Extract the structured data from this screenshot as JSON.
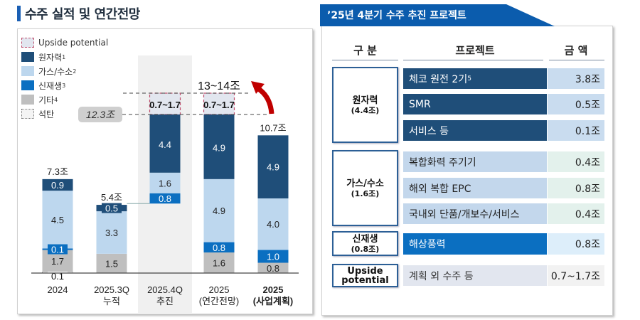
{
  "left_panel": {
    "title": "수주 실적 및 연간전망",
    "legend": [
      {
        "label": "Upside potential",
        "sup": "",
        "key": "upside"
      },
      {
        "label": "원자력",
        "sup": "1",
        "key": "nuclear"
      },
      {
        "label": "가스/수소",
        "sup": "2",
        "key": "gas"
      },
      {
        "label": "신재생",
        "sup": "3",
        "key": "renewable"
      },
      {
        "label": "기타",
        "sup": "4",
        "key": "other"
      },
      {
        "label": "석탄",
        "sup": "",
        "key": "coal"
      }
    ]
  },
  "colors": {
    "nuclear": "#1f4e79",
    "gas": "#bdd7ee",
    "renewable": "#0b6fc1",
    "other": "#bfbfbf",
    "upside": "#e2e6ef",
    "upside_border": "#c0506e",
    "highlight_bg": "#f0f0f0",
    "arrow": "#c00000",
    "title_accent": "#1a5fb4",
    "tab_bg": "#0b5cad"
  },
  "chart_data": {
    "type": "bar",
    "stacked": true,
    "title": "수주 실적 및 연간전망",
    "unit": "조",
    "categories": [
      "2024",
      "2025.3Q 누적",
      "2025.4Q 추진",
      "2025 (연간전망)",
      "2025 (사업계획)"
    ],
    "category_lines": [
      [
        "2024"
      ],
      [
        "2025.3Q",
        "누적"
      ],
      [
        "2025.4Q",
        "추진"
      ],
      [
        "2025",
        "(연간전망)"
      ],
      [
        "2025",
        "(사업계획)"
      ]
    ],
    "series": [
      {
        "name": "석탄",
        "key": "coal",
        "values": [
          0.1,
          0,
          0,
          0,
          0
        ]
      },
      {
        "name": "기타",
        "key": "other",
        "values": [
          1.7,
          1.5,
          0,
          1.6,
          0.8
        ]
      },
      {
        "name": "신재생",
        "key": "renewable",
        "values": [
          0.1,
          0,
          0.8,
          0.8,
          1.0
        ]
      },
      {
        "name": "가스/수소",
        "key": "gas",
        "values": [
          4.5,
          3.3,
          1.6,
          4.9,
          4.0
        ]
      },
      {
        "name": "원자력",
        "key": "nuclear",
        "values": [
          0.9,
          0.5,
          4.4,
          4.9,
          4.9
        ]
      },
      {
        "name": "Upside potential",
        "key": "upside",
        "values": [
          "",
          "",
          "0.7~1.7",
          "0.7~1.7",
          ""
        ]
      }
    ],
    "waterfall_offset": [
      0,
      0,
      5.4,
      0,
      0
    ],
    "totals": [
      "7.3조",
      "5.4조",
      "",
      "",
      "10.7조"
    ],
    "annotations": {
      "base_total": "12.3조",
      "upside_total": "13~14조"
    },
    "ylim": [
      0,
      14
    ],
    "highlight_category": "2025.4Q 추진",
    "bold_category": "2025 (사업계획)"
  },
  "right_panel": {
    "title": "’25년 4분기 수주 추진 프로젝트",
    "headers": {
      "category": "구 분",
      "project": "프로젝트",
      "amount": "금 액"
    },
    "groups": [
      {
        "name": "원자력",
        "amount": "(4.4조)",
        "projects": [
          {
            "name": "체코 원전 2기",
            "sup": "5",
            "amount": "3.8조"
          },
          {
            "name": "SMR",
            "sup": "",
            "amount": "0.5조"
          },
          {
            "name": "서비스 등",
            "sup": "",
            "amount": "0.1조"
          }
        ]
      },
      {
        "name": "가스/수소",
        "amount": "(1.6조)",
        "projects": [
          {
            "name": "복합화력 주기기",
            "sup": "",
            "amount": "0.4조"
          },
          {
            "name": "해외 복합 EPC",
            "sup": "",
            "amount": "0.8조"
          },
          {
            "name": "국내외 단품/개보수/서비스",
            "sup": "",
            "amount": "0.4조"
          }
        ]
      },
      {
        "name": "신재생",
        "amount": "(0.8조)",
        "projects": [
          {
            "name": "해상풍력",
            "sup": "",
            "amount": "0.8조"
          }
        ]
      },
      {
        "name": "Upside potential",
        "amount": "",
        "projects": [
          {
            "name": "계획 외 수주 등",
            "sup": "",
            "amount": "0.7~1.7조"
          }
        ]
      }
    ]
  }
}
